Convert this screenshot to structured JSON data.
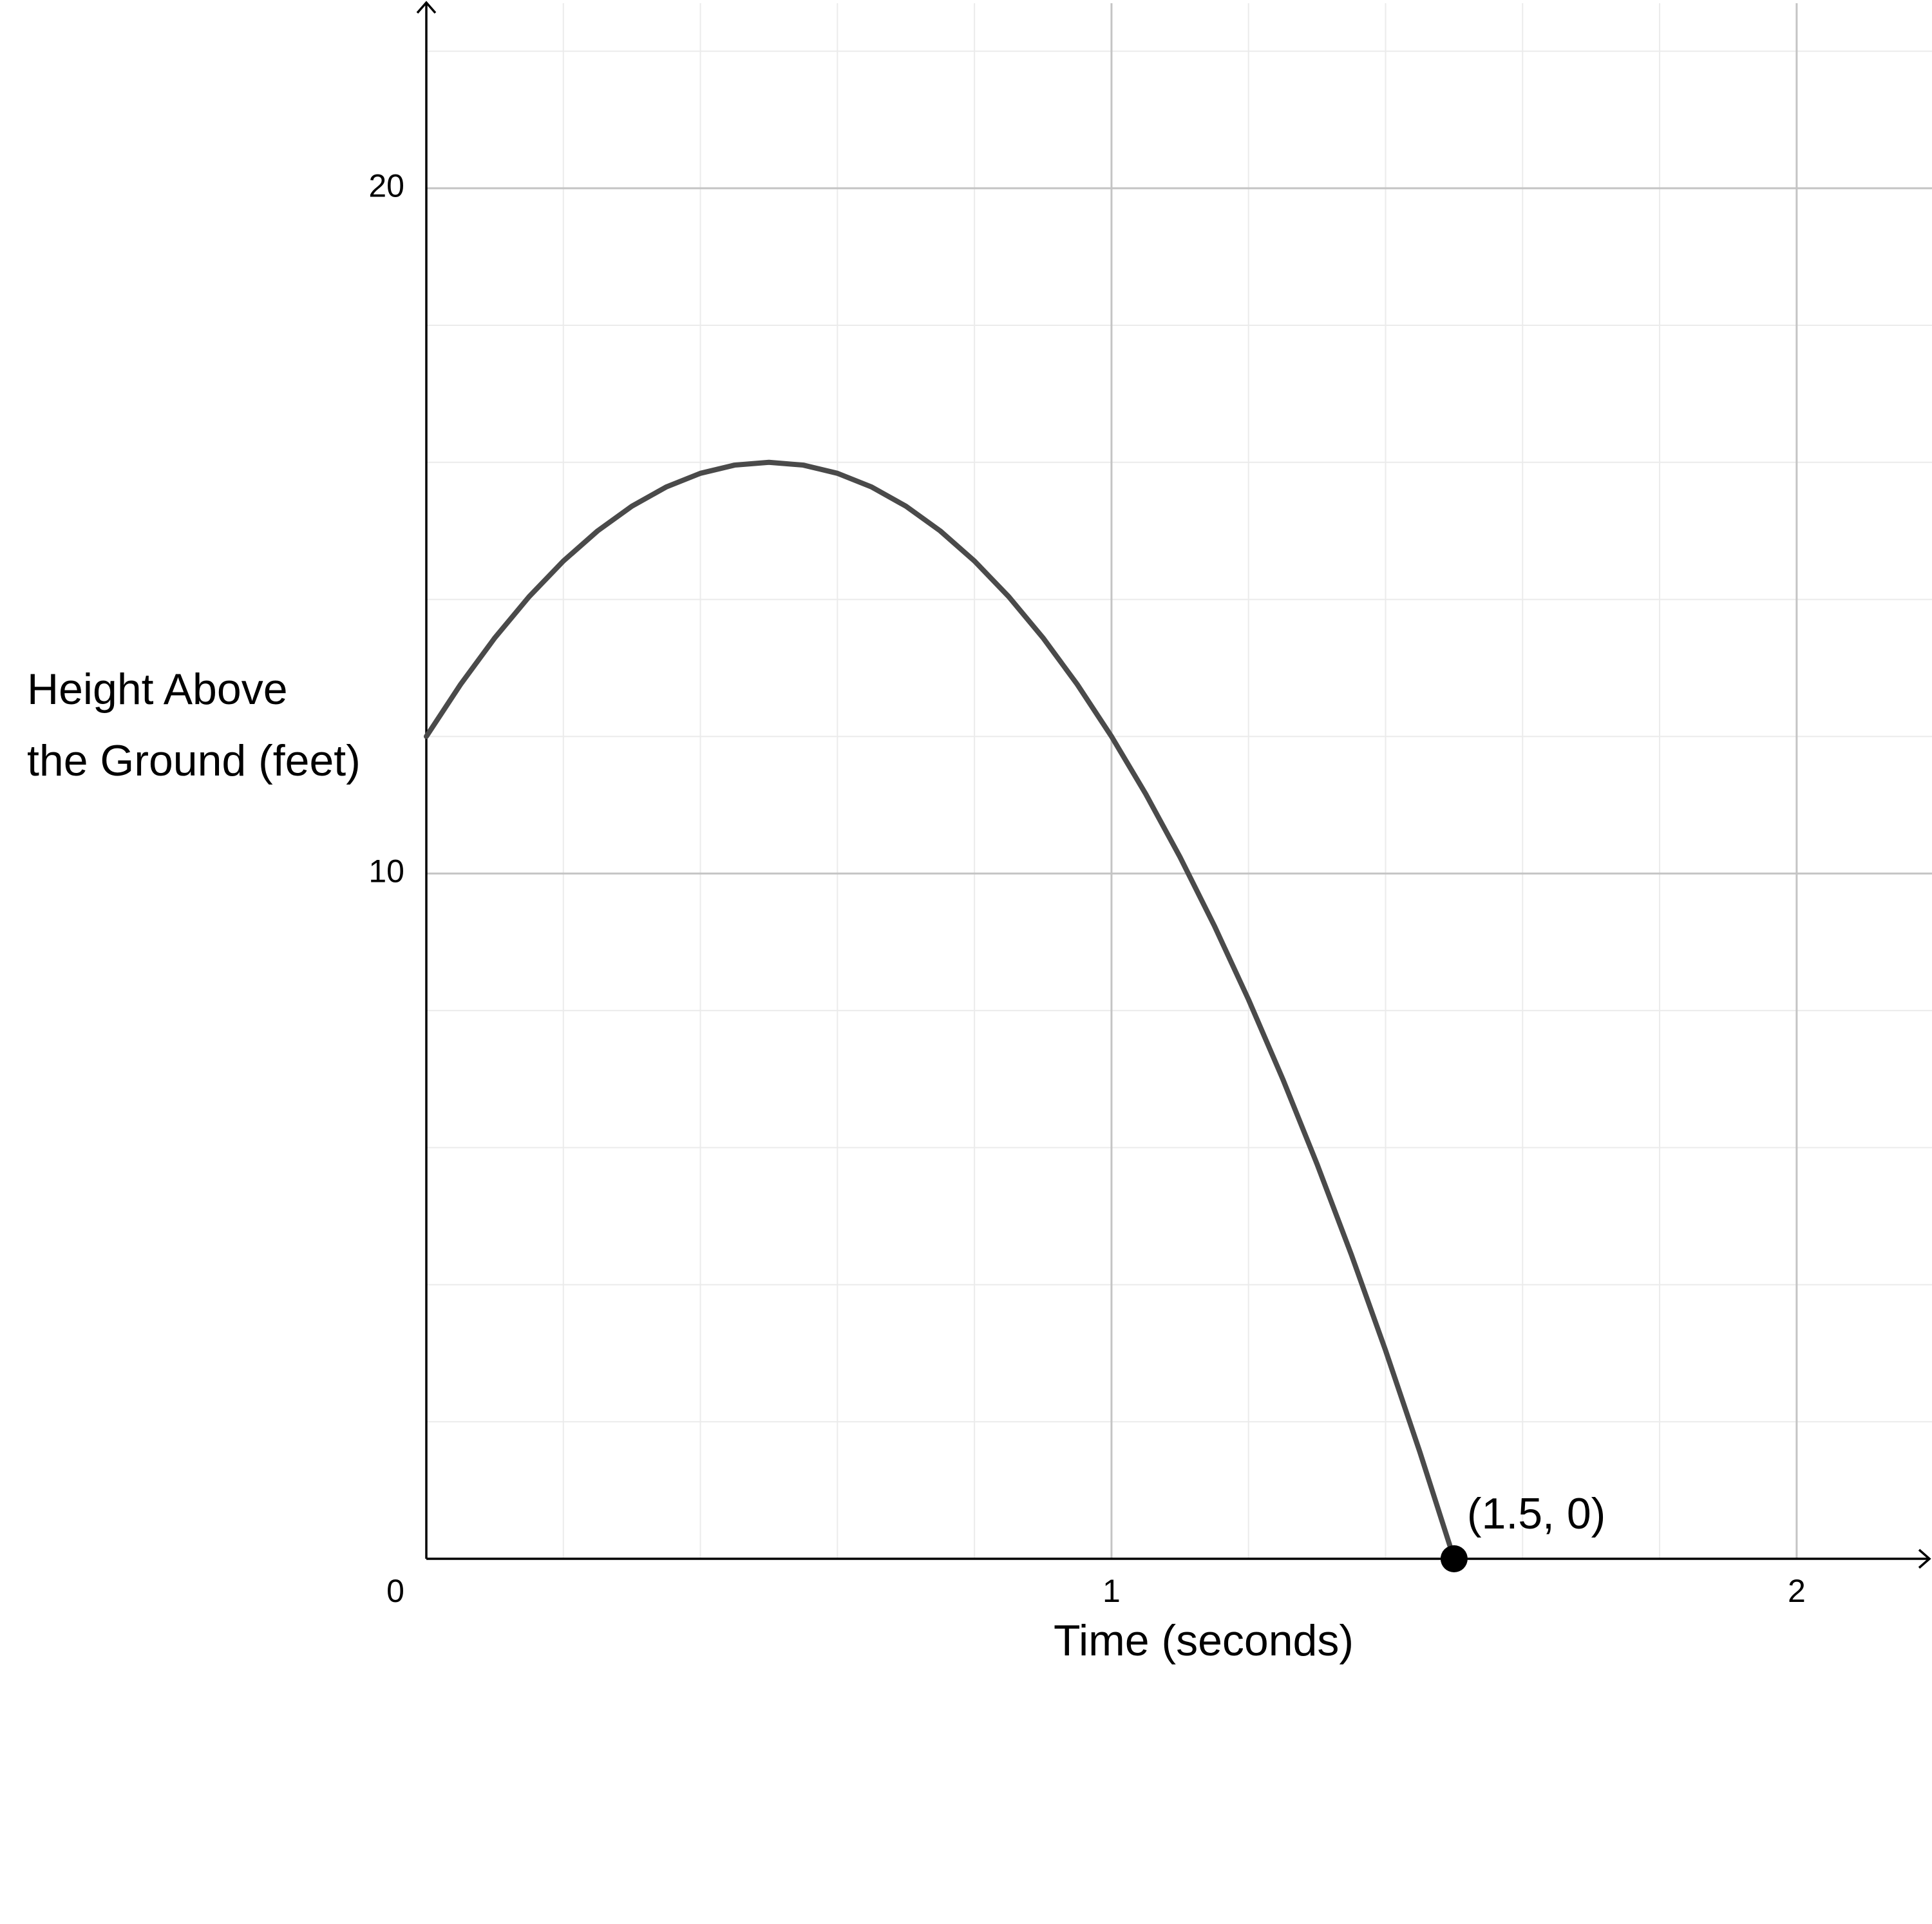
{
  "chart_data": {
    "type": "line",
    "xlabel": "Time (seconds)",
    "ylabel": [
      "Height Above",
      "the Ground (feet)"
    ],
    "x": [
      0,
      0.05,
      0.1,
      0.15,
      0.2,
      0.25,
      0.3,
      0.35,
      0.4,
      0.45,
      0.5,
      0.55,
      0.6,
      0.65,
      0.7,
      0.75,
      0.8,
      0.85,
      0.9,
      0.95,
      1.0,
      1.05,
      1.1,
      1.15,
      1.2,
      1.25,
      1.3,
      1.35,
      1.4,
      1.45,
      1.5
    ],
    "series": [
      {
        "color": "#4a4a4a",
        "values": [
          12,
          12.76,
          13.44,
          14.04,
          14.56,
          15,
          15.36,
          15.64,
          15.84,
          15.96,
          16,
          15.96,
          15.84,
          15.64,
          15.36,
          15,
          14.56,
          14.04,
          13.44,
          12.76,
          12,
          11.16,
          10.24,
          9.24,
          8.16,
          7,
          5.76,
          4.44,
          3.04,
          1.56,
          0
        ]
      }
    ],
    "points": [
      {
        "x": 1.5,
        "y": 0,
        "label": "(1.5, 0)",
        "color": "#000000"
      }
    ],
    "xlim": [
      0,
      2.19
    ],
    "ylim": [
      0,
      22.7
    ],
    "xticks": [
      0,
      1,
      2
    ],
    "yticks": [
      10,
      20
    ],
    "grid": true,
    "minor_grid": {
      "x": 0.2,
      "y": 2
    }
  }
}
